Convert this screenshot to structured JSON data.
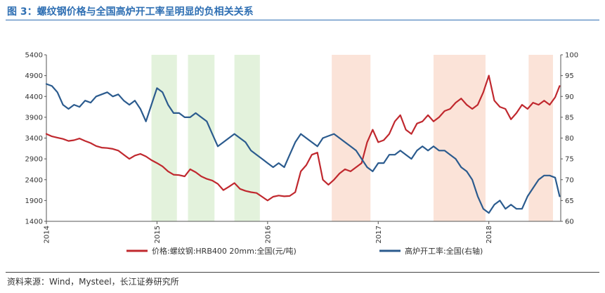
{
  "figure": {
    "title": "图 3：螺纹钢价格与全国高炉开工率呈明显的负相关关系",
    "source": "资料来源：Wind，Mysteel，长江证券研究所"
  },
  "chart_data": {
    "type": "line",
    "xlabel": "",
    "ylabel": "",
    "y_left_lim": [
      1400,
      5400
    ],
    "y_left_ticks": [
      "5400",
      "4900",
      "4400",
      "3900",
      "3400",
      "2900",
      "2400",
      "1900",
      "1400"
    ],
    "y_right_lim": [
      60,
      100
    ],
    "y_right_ticks": [
      "100",
      "95",
      "90",
      "85",
      "80",
      "75",
      "70",
      "65",
      "60"
    ],
    "x_lim": [
      2014.0,
      2018.65
    ],
    "x_ticks": [
      {
        "value": 2014,
        "label": "2014"
      },
      {
        "value": 2015,
        "label": "2015"
      },
      {
        "value": 2016,
        "label": "2016"
      },
      {
        "value": 2017,
        "label": "2017"
      },
      {
        "value": 2018,
        "label": "2018"
      }
    ],
    "grid": false,
    "legend_position": "bottom",
    "shaded_regions": [
      {
        "start": 2014.95,
        "end": 2015.18,
        "color": "#e3f2dc"
      },
      {
        "start": 2015.28,
        "end": 2015.52,
        "color": "#e3f2dc"
      },
      {
        "start": 2015.7,
        "end": 2015.93,
        "color": "#e3f2dc"
      },
      {
        "start": 2016.58,
        "end": 2016.93,
        "color": "#fbe3d8"
      },
      {
        "start": 2017.5,
        "end": 2017.97,
        "color": "#fbe3d8"
      },
      {
        "start": 2018.36,
        "end": 2018.58,
        "color": "#fbe3d8"
      }
    ],
    "series": [
      {
        "name": "价格:螺纹钢:HRB400 20mm:全国(元/吨)",
        "axis": "left",
        "color": "#c0282e",
        "x": [
          2014.0,
          2014.05,
          2014.1,
          2014.15,
          2014.2,
          2014.25,
          2014.3,
          2014.35,
          2014.4,
          2014.45,
          2014.5,
          2014.55,
          2014.6,
          2014.65,
          2014.7,
          2014.75,
          2014.8,
          2014.85,
          2014.9,
          2014.95,
          2015.0,
          2015.05,
          2015.1,
          2015.15,
          2015.2,
          2015.25,
          2015.3,
          2015.35,
          2015.4,
          2015.45,
          2015.5,
          2015.55,
          2015.6,
          2015.65,
          2015.7,
          2015.75,
          2015.8,
          2015.85,
          2015.9,
          2015.95,
          2016.0,
          2016.05,
          2016.1,
          2016.15,
          2016.2,
          2016.25,
          2016.3,
          2016.35,
          2016.4,
          2016.45,
          2016.5,
          2016.55,
          2016.6,
          2016.65,
          2016.7,
          2016.75,
          2016.8,
          2016.85,
          2016.9,
          2016.95,
          2017.0,
          2017.05,
          2017.1,
          2017.15,
          2017.2,
          2017.25,
          2017.3,
          2017.35,
          2017.4,
          2017.45,
          2017.5,
          2017.55,
          2017.6,
          2017.65,
          2017.7,
          2017.75,
          2017.8,
          2017.85,
          2017.9,
          2017.95,
          2018.0,
          2018.05,
          2018.1,
          2018.15,
          2018.2,
          2018.25,
          2018.3,
          2018.35,
          2018.4,
          2018.45,
          2018.5,
          2018.55,
          2018.6,
          2018.64
        ],
        "values": [
          3500,
          3440,
          3410,
          3380,
          3330,
          3350,
          3390,
          3330,
          3280,
          3210,
          3170,
          3160,
          3140,
          3100,
          3000,
          2900,
          2980,
          3020,
          2960,
          2870,
          2800,
          2720,
          2600,
          2520,
          2510,
          2480,
          2650,
          2580,
          2480,
          2420,
          2380,
          2300,
          2150,
          2230,
          2320,
          2180,
          2130,
          2100,
          2080,
          1990,
          1900,
          1990,
          2020,
          2000,
          2010,
          2100,
          2600,
          2750,
          3000,
          3050,
          2400,
          2280,
          2400,
          2550,
          2650,
          2600,
          2700,
          2800,
          3300,
          3600,
          3300,
          3350,
          3500,
          3800,
          3950,
          3600,
          3500,
          3750,
          3800,
          3950,
          3800,
          3900,
          4050,
          4100,
          4250,
          4350,
          4200,
          4100,
          4200,
          4500,
          4900,
          4300,
          4150,
          4100,
          3850,
          4000,
          4200,
          4100,
          4250,
          4200,
          4300,
          4200,
          4380,
          4650
        ]
      },
      {
        "name": "高炉开工率:全国(右轴)",
        "axis": "right",
        "color": "#2b5b8e",
        "x": [
          2014.0,
          2014.05,
          2014.1,
          2014.15,
          2014.2,
          2014.25,
          2014.3,
          2014.35,
          2014.4,
          2014.45,
          2014.5,
          2014.55,
          2014.6,
          2014.65,
          2014.7,
          2014.75,
          2014.8,
          2014.85,
          2014.9,
          2014.95,
          2015.0,
          2015.05,
          2015.1,
          2015.15,
          2015.2,
          2015.25,
          2015.3,
          2015.35,
          2015.4,
          2015.45,
          2015.5,
          2015.55,
          2015.6,
          2015.65,
          2015.7,
          2015.75,
          2015.8,
          2015.85,
          2015.9,
          2015.95,
          2016.0,
          2016.05,
          2016.1,
          2016.15,
          2016.2,
          2016.25,
          2016.3,
          2016.35,
          2016.4,
          2016.45,
          2016.5,
          2016.55,
          2016.6,
          2016.65,
          2016.7,
          2016.75,
          2016.8,
          2016.85,
          2016.9,
          2016.95,
          2017.0,
          2017.05,
          2017.1,
          2017.15,
          2017.2,
          2017.25,
          2017.3,
          2017.35,
          2017.4,
          2017.45,
          2017.5,
          2017.55,
          2017.6,
          2017.65,
          2017.7,
          2017.75,
          2017.8,
          2017.85,
          2017.9,
          2017.95,
          2018.0,
          2018.05,
          2018.1,
          2018.15,
          2018.2,
          2018.25,
          2018.3,
          2018.35,
          2018.4,
          2018.45,
          2018.5,
          2018.55,
          2018.6,
          2018.64
        ],
        "values": [
          93,
          92.5,
          91,
          88,
          87,
          88,
          87.5,
          89,
          88.5,
          90,
          90.5,
          91,
          90,
          90.5,
          89,
          88,
          89,
          87,
          84,
          88,
          92,
          91,
          88,
          86,
          86,
          85,
          85,
          86,
          85,
          84,
          81,
          78,
          79,
          80,
          81,
          80,
          79,
          77,
          76,
          75,
          74,
          73,
          74,
          73,
          76,
          79,
          81,
          80,
          79,
          78,
          80,
          80.5,
          81,
          80,
          79,
          78,
          77,
          75,
          73,
          72,
          74,
          74,
          76,
          76,
          77,
          76,
          75,
          77,
          78,
          77,
          78,
          77,
          77,
          76,
          75,
          73,
          72,
          70,
          66,
          63,
          62,
          64,
          65,
          63,
          64,
          63,
          63,
          66,
          68,
          70,
          71,
          71,
          70.5,
          66
        ]
      }
    ]
  }
}
